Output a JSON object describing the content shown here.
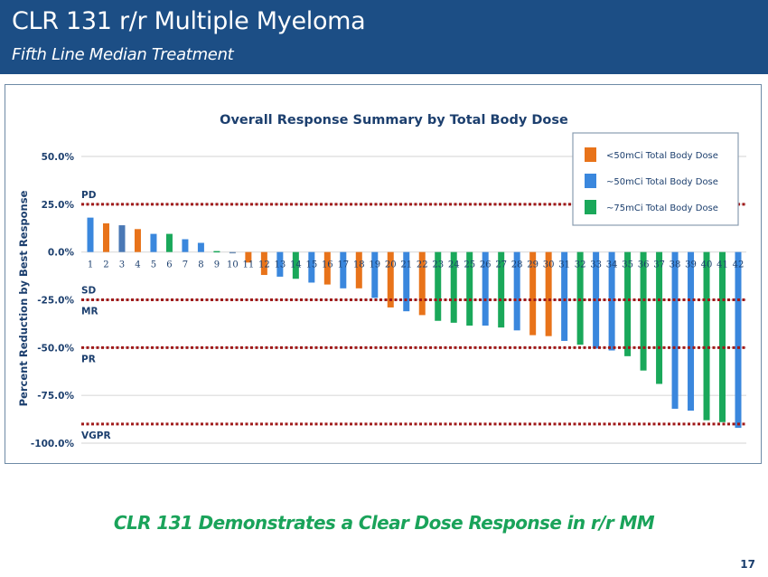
{
  "header": {
    "title": "CLR 131 r/r Multiple Myeloma",
    "subtitle": "Fifth Line Median Treatment"
  },
  "footer": {
    "tagline": "CLR 131 Demonstrates a Clear Dose Response in r/r MM",
    "page_number": "17"
  },
  "colors": {
    "header_bg": "#1c4e85",
    "orange": "#e8731a",
    "blue": "#3a87dd",
    "steel_blue": "#4a78b5",
    "green": "#1aa85a",
    "threshold_red": "#a01a1a",
    "tagline_green": "#1aa35a"
  },
  "chart_data": {
    "type": "bar",
    "title": "Overall Response Summary by Total Body Dose",
    "xlabel": "",
    "ylabel": "Percent Reduction by Best Response",
    "ylim": [
      -100,
      50
    ],
    "yticks": [
      50,
      25,
      0,
      -25,
      -50,
      -75,
      -100
    ],
    "ytick_labels": [
      "50.0%",
      "25.0%",
      "0.0%",
      "-25.0%",
      "-50.0%",
      "-75.0%",
      "-100.0%"
    ],
    "grid": true,
    "legend_position": "top-right",
    "legend": [
      {
        "key": "lt50",
        "label": "<50mCi Total Body Dose",
        "color": "#e8731a"
      },
      {
        "key": "eq50",
        "label": "~50mCi Total Body Dose",
        "color": "#3a87dd"
      },
      {
        "key": "eq75",
        "label": "~75mCi Total Body Dose",
        "color": "#1aa85a"
      }
    ],
    "thresholds": [
      {
        "value": 25,
        "labels": [
          {
            "text": "PD",
            "side": "above"
          }
        ]
      },
      {
        "value": -25,
        "labels": [
          {
            "text": "SD",
            "side": "above"
          },
          {
            "text": "MR",
            "side": "below"
          }
        ]
      },
      {
        "value": -50,
        "labels": [
          {
            "text": "PR",
            "side": "below"
          }
        ]
      },
      {
        "value": -90,
        "labels": [
          {
            "text": "VGPR",
            "side": "below"
          }
        ]
      }
    ],
    "categories": [
      "1",
      "2",
      "3",
      "4",
      "5",
      "6",
      "7",
      "8",
      "9",
      "10",
      "11",
      "12",
      "13",
      "14",
      "15",
      "16",
      "17",
      "18",
      "19",
      "20",
      "21",
      "22",
      "23",
      "24",
      "25",
      "26",
      "27",
      "28",
      "29",
      "30",
      "31",
      "32",
      "33",
      "34",
      "35",
      "36",
      "37",
      "38",
      "39",
      "40",
      "41",
      "42"
    ],
    "values": [
      18,
      15,
      14,
      12,
      9.5,
      9.5,
      6.7,
      4.8,
      0.5,
      -0.5,
      -5.5,
      -12,
      -12.9,
      -14,
      -16,
      -17,
      -19,
      -19,
      -24,
      -29,
      -31,
      -33,
      -36,
      -37,
      -38.5,
      -38.5,
      -39.5,
      -41,
      -43.5,
      -44,
      -46.5,
      -48.5,
      -50.5,
      -51.5,
      -54.5,
      -62,
      -69,
      -82,
      -83,
      -88,
      -89,
      -92
    ],
    "dose_groups": [
      "eq50",
      "lt50",
      "eq50s",
      "lt50",
      "eq50",
      "eq75",
      "eq50",
      "eq50",
      "eq75",
      "eq50g",
      "lt50",
      "lt50",
      "eq50",
      "eq75",
      "eq50",
      "lt50",
      "eq50",
      "lt50",
      "eq50",
      "lt50",
      "eq50",
      "lt50",
      "eq75",
      "eq75",
      "eq75",
      "eq50",
      "eq75",
      "eq50",
      "lt50",
      "lt50",
      "eq50",
      "eq75",
      "eq50",
      "eq50",
      "eq75",
      "eq75",
      "eq75",
      "eq50",
      "eq50",
      "eq75",
      "eq75",
      "eq50"
    ]
  }
}
